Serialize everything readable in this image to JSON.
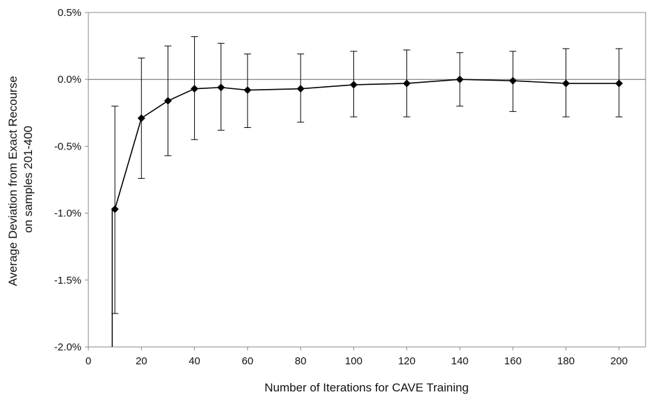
{
  "chart_data": {
    "type": "line",
    "title": "",
    "xlabel": "Number of Iterations for CAVE Training",
    "ylabel_lines": [
      "Average Deviation from Exact Recourse",
      "on samples 201-400"
    ],
    "xlim": [
      0,
      210
    ],
    "ylim": [
      -0.02,
      0.005
    ],
    "x_ticks": [
      0,
      20,
      40,
      60,
      80,
      100,
      120,
      140,
      160,
      180,
      200
    ],
    "x_tick_labels": [
      "0",
      "20",
      "40",
      "60",
      "80",
      "100",
      "120",
      "140",
      "160",
      "180",
      "200"
    ],
    "y_ticks": [
      0.005,
      0.0,
      -0.005,
      -0.01,
      -0.015,
      -0.02
    ],
    "y_tick_labels": [
      "0.5%",
      "0.0%",
      "-0.5%",
      "-1.0%",
      "-1.5%",
      "-2.0%"
    ],
    "zero_line": true,
    "grid": false,
    "legend": "none",
    "colors": {
      "line": "#000000",
      "axis": "#888888",
      "zero_line": "#666666"
    },
    "series": [
      {
        "x": [
          10,
          20,
          30,
          40,
          50,
          60,
          80,
          100,
          120,
          140,
          160,
          180,
          200
        ],
        "y": [
          -0.0097,
          -0.0029,
          -0.0016,
          -0.0007,
          -0.0006,
          -0.0008,
          -0.0007,
          -0.0004,
          -0.0003,
          0.0,
          -0.0001,
          -0.0003,
          -0.0003
        ],
        "ylow": [
          -0.0175,
          -0.0074,
          -0.0057,
          -0.0045,
          -0.0038,
          -0.0036,
          -0.0032,
          -0.0028,
          -0.0028,
          -0.002,
          -0.0024,
          -0.0028,
          -0.0028
        ],
        "yhigh": [
          -0.002,
          0.0016,
          0.0025,
          0.0032,
          0.0027,
          0.0019,
          0.0019,
          0.0021,
          0.0022,
          0.002,
          0.0021,
          0.0023,
          0.0023
        ]
      }
    ],
    "extra_segment": {
      "x": 9,
      "y_from": -0.0097,
      "y_to": -0.02
    }
  }
}
